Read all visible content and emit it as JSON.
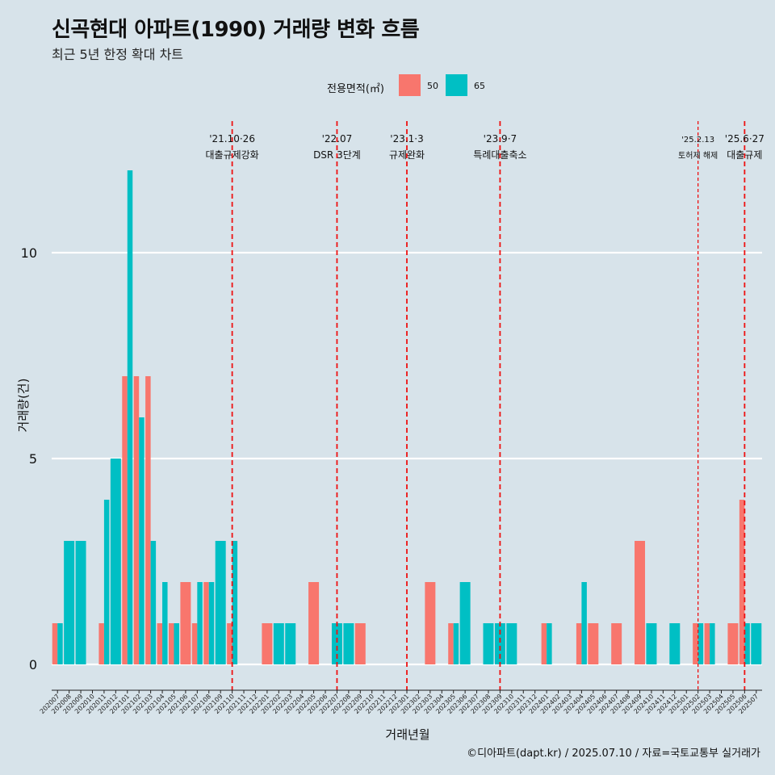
{
  "title": "신곡현대 아파트(1990) 거래량 변화 흐름",
  "subtitle": "최근 5년 한정 확대 차트",
  "caption": "©디아파트(dapt.kr) / 2025.07.10 / 자료=국토교통부 실거래가",
  "legend": {
    "title": "전용면적(㎡)",
    "items": [
      {
        "label": "50",
        "color": "#f8766d"
      },
      {
        "label": "65",
        "color": "#00bfc4"
      }
    ]
  },
  "chart_data": {
    "type": "bar",
    "xlabel": "거래년월",
    "ylabel": "거래량(건)",
    "ylim": [
      -0.6,
      12.5
    ],
    "yticks": [
      0,
      5,
      10
    ],
    "grid": true,
    "legend_position": "top",
    "categories": [
      "202007",
      "202008",
      "202009",
      "202010",
      "202011",
      "202012",
      "202101",
      "202102",
      "202103",
      "202104",
      "202105",
      "202106",
      "202107",
      "202108",
      "202109",
      "202110",
      "202111",
      "202112",
      "202201",
      "202202",
      "202203",
      "202204",
      "202205",
      "202206",
      "202207",
      "202208",
      "202209",
      "202210",
      "202211",
      "202212",
      "202301",
      "202302",
      "202303",
      "202304",
      "202305",
      "202306",
      "202307",
      "202308",
      "202309",
      "202310",
      "202311",
      "202312",
      "202401",
      "202402",
      "202403",
      "202404",
      "202405",
      "202406",
      "202407",
      "202408",
      "202409",
      "202410",
      "202411",
      "202412",
      "202501",
      "202502",
      "202503",
      "202504",
      "202505",
      "202506",
      "202507"
    ],
    "series": [
      {
        "name": "50",
        "color": "#f8766d",
        "values": [
          1,
          0,
          0,
          0,
          1,
          0,
          7,
          7,
          7,
          1,
          1,
          2,
          1,
          2,
          0,
          1,
          0,
          0,
          1,
          0,
          0,
          0,
          2,
          0,
          0,
          0,
          1,
          0,
          0,
          0,
          0,
          0,
          2,
          0,
          1,
          0,
          0,
          0,
          0,
          0,
          0,
          0,
          1,
          0,
          0,
          1,
          1,
          0,
          1,
          0,
          3,
          0,
          0,
          0,
          0,
          1,
          1,
          0,
          1,
          4,
          0
        ]
      },
      {
        "name": "65",
        "color": "#00bfc4",
        "values": [
          1,
          3,
          3,
          0,
          4,
          5,
          12,
          6,
          3,
          2,
          1,
          0,
          2,
          2,
          3,
          3,
          0,
          0,
          0,
          1,
          1,
          0,
          0,
          0,
          1,
          1,
          0,
          0,
          0,
          0,
          0,
          0,
          0,
          0,
          1,
          2,
          0,
          1,
          1,
          1,
          0,
          0,
          1,
          0,
          0,
          2,
          0,
          0,
          0,
          0,
          0,
          1,
          0,
          1,
          0,
          1,
          1,
          0,
          0,
          1,
          1
        ]
      }
    ],
    "annotations": [
      {
        "category": "202110",
        "date": "'21.10·26",
        "label": "대출규제강화",
        "style": "dashed"
      },
      {
        "category": "202207",
        "date": "'22.07",
        "label": "DSR 3단계",
        "style": "dashed"
      },
      {
        "category": "202301",
        "date": "'23.1·3",
        "label": "규제완화",
        "style": "dashed"
      },
      {
        "category": "202309",
        "date": "'23.9·7",
        "label": "특례대출축소",
        "style": "dashed"
      },
      {
        "category": "202502",
        "date": "'25.2.13",
        "label": "토허제 해제",
        "style": "dotted",
        "small": true
      },
      {
        "category": "202506",
        "date": "'25.6·27",
        "label": "대출규제",
        "style": "dashed"
      }
    ]
  }
}
